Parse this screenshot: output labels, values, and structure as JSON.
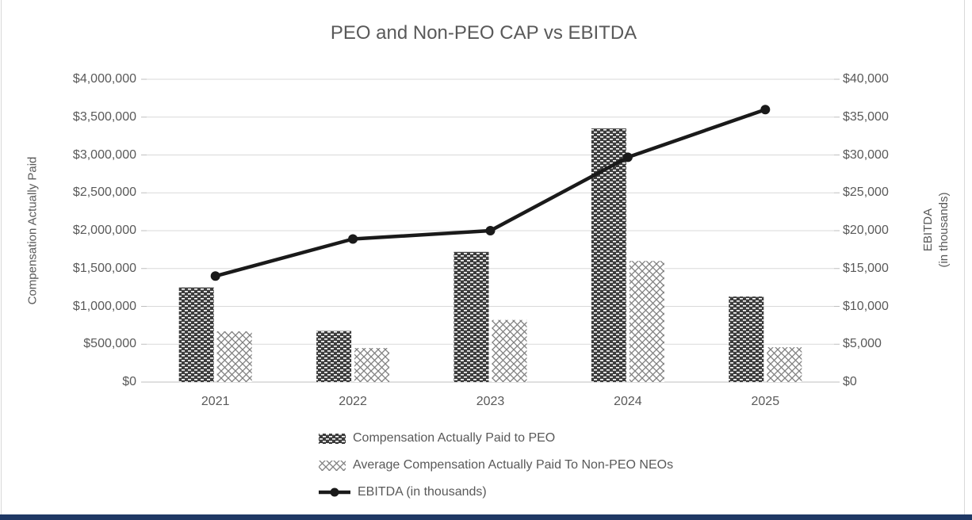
{
  "title": "PEO and Non-PEO CAP vs EBITDA",
  "left_axis": {
    "title": "Compensation Actually Paid",
    "tick_labels": [
      "$4,000,000",
      "$3,500,000",
      "$3,000,000",
      "$2,500,000",
      "$2,000,000",
      "$1,500,000",
      "$1,000,000",
      "$500,000",
      "$0"
    ]
  },
  "right_axis": {
    "title_line1": "EBITDA",
    "title_line2": "(in thousands)",
    "tick_labels": [
      "$40,000",
      "$35,000",
      "$30,000",
      "$25,000",
      "$20,000",
      "$15,000",
      "$10,000",
      "$5,000",
      "$0"
    ]
  },
  "chart_data": {
    "type": "combo",
    "categories": [
      "2021",
      "2022",
      "2023",
      "2024",
      "2025"
    ],
    "series": [
      {
        "name": "Compensation Actually Paid to PEO",
        "type": "bar",
        "axis": "left",
        "pattern": "dark-checker",
        "values": [
          1250000,
          675000,
          1720000,
          3350000,
          1130000
        ]
      },
      {
        "name": "Average Compensation Actually Paid To Non-PEO NEOs",
        "type": "bar",
        "axis": "left",
        "pattern": "diamond-crosshatch",
        "values": [
          670000,
          450000,
          820000,
          1600000,
          460000
        ]
      },
      {
        "name": "EBITDA (in thousands)",
        "type": "line",
        "axis": "right",
        "color": "#1a1a1a",
        "values": [
          14000,
          18900,
          20000,
          29700,
          36000
        ]
      }
    ],
    "left_ylim": [
      0,
      4000000
    ],
    "left_step": 500000,
    "right_ylim": [
      0,
      40000
    ],
    "right_step": 5000,
    "grid": true,
    "legend_position": "bottom"
  },
  "colors": {
    "text": "#595959",
    "gridline": "#d9d9d9",
    "axis_line": "#bfbfbf",
    "bar_dark": "#3d3d3d",
    "bar_hatch_stroke": "#7f7f7f",
    "line_series": "#1a1a1a",
    "bottom_bar": "#1f3864",
    "frame_border": "#d9d9d9"
  }
}
